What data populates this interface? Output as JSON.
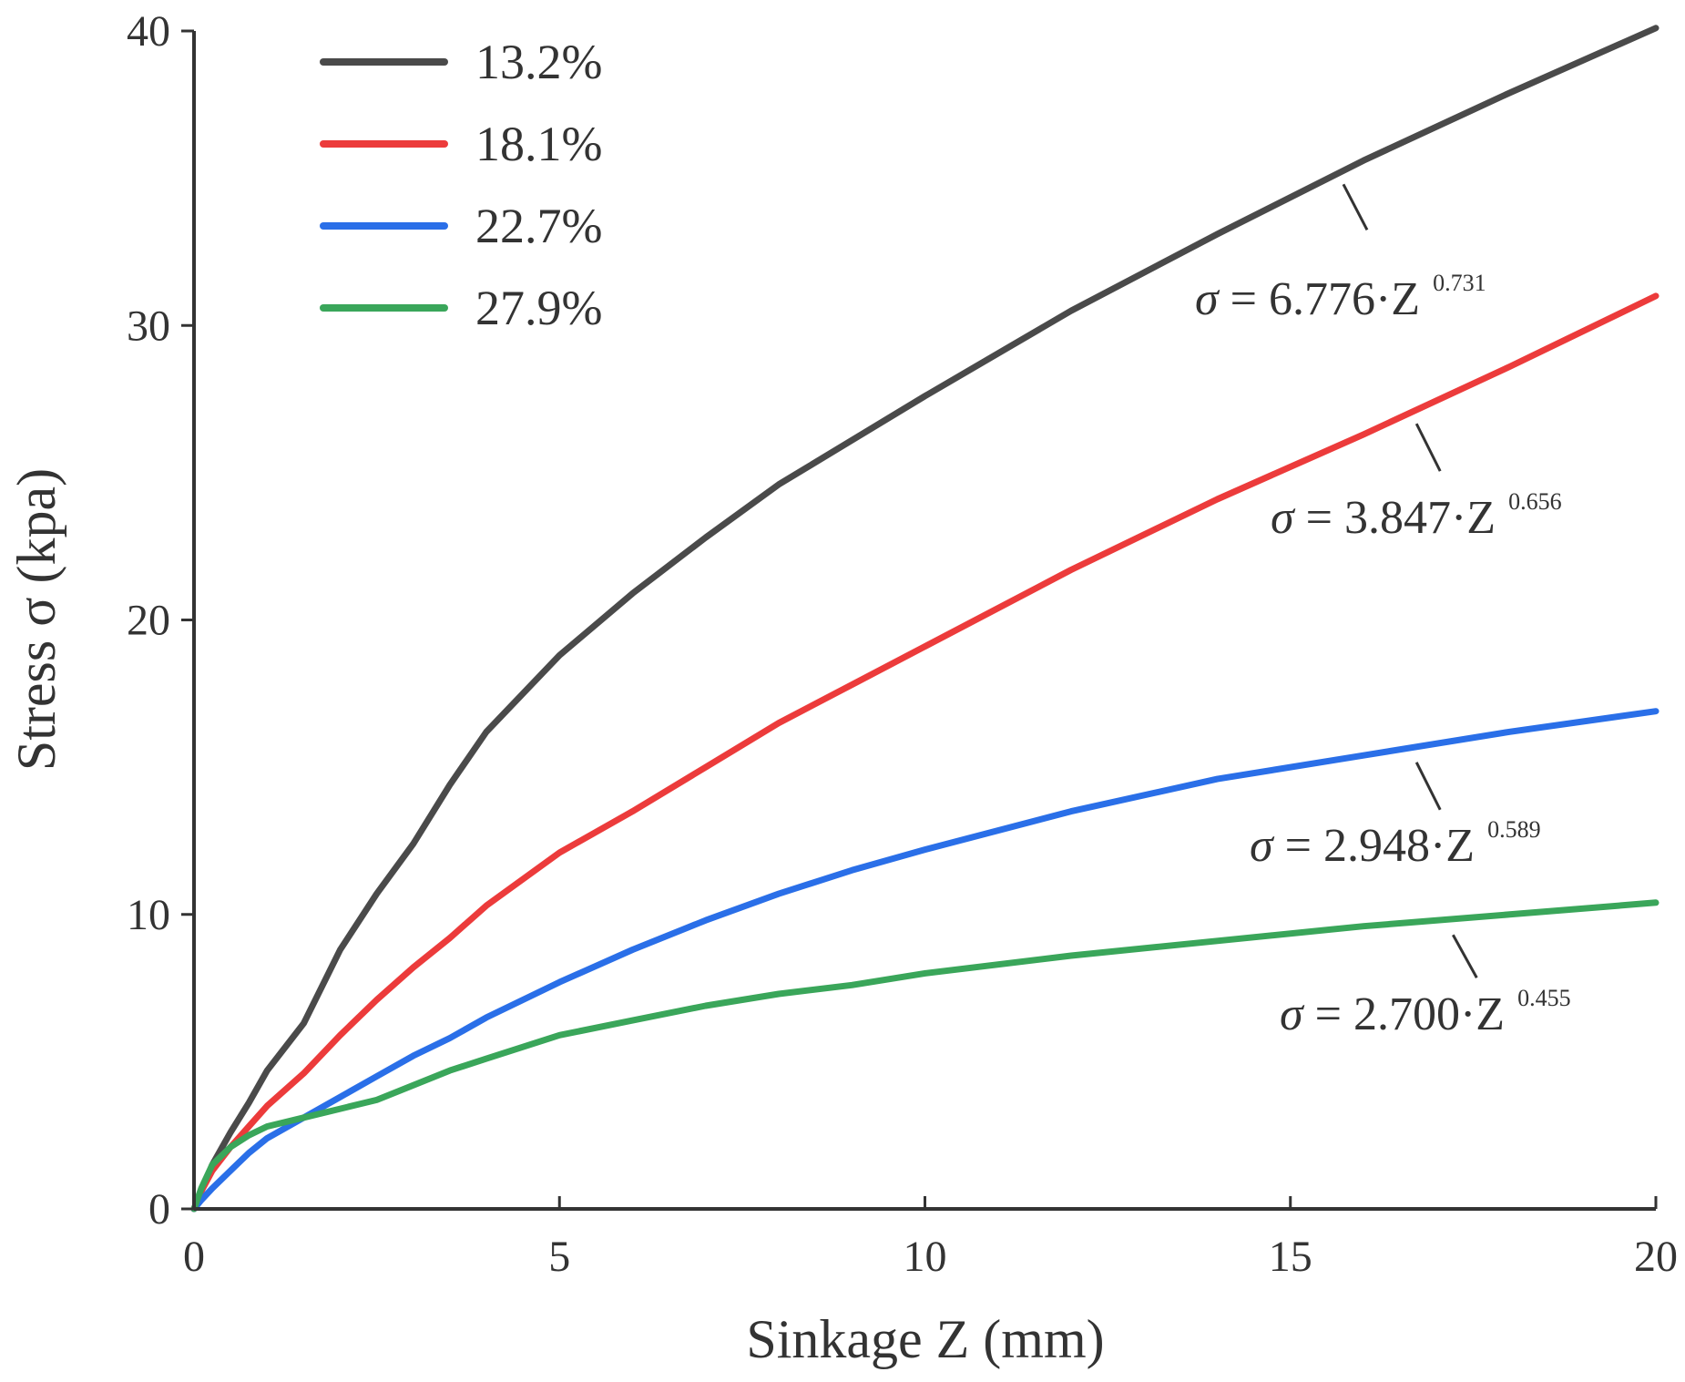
{
  "chart_data": {
    "type": "line",
    "title": "",
    "xlabel": "Sinkage Z (mm)",
    "ylabel": "Stress σ (kpa)",
    "xlim": [
      0,
      20
    ],
    "ylim": [
      0,
      40
    ],
    "x_ticks": [
      0,
      5,
      10,
      15,
      20
    ],
    "y_ticks": [
      0,
      10,
      20,
      30,
      40
    ],
    "grid": false,
    "legend_position": "top-left",
    "series": [
      {
        "name": "13.2%",
        "color": "#4a4a4a",
        "fit": {
          "a": 6.776,
          "b": 0.731
        },
        "x": [
          0,
          0.1,
          0.25,
          0.5,
          0.75,
          1,
          1.5,
          2,
          2.5,
          3,
          3.5,
          4,
          5,
          6,
          7,
          8,
          9,
          10,
          12,
          14,
          16,
          18,
          20
        ],
        "values": [
          0,
          0.6,
          1.5,
          2.6,
          3.6,
          4.7,
          6.3,
          8.8,
          10.7,
          12.4,
          14.4,
          16.2,
          18.8,
          20.9,
          22.8,
          24.6,
          26.1,
          27.6,
          30.5,
          33.1,
          35.6,
          37.9,
          40.1
        ],
        "annotation": {
          "prefix": "σ",
          "text": " = 6.776·Z",
          "exponent": "0.731",
          "x": 15.8
        }
      },
      {
        "name": "18.1%",
        "color": "#ec3b3b",
        "fit": {
          "a": 3.847,
          "b": 0.656
        },
        "x": [
          0,
          0.1,
          0.25,
          0.5,
          0.75,
          1,
          1.5,
          2,
          2.5,
          3,
          3.5,
          4,
          5,
          6,
          7,
          8,
          9,
          10,
          12,
          14,
          16,
          18,
          20
        ],
        "values": [
          0,
          0.6,
          1.3,
          2.1,
          2.8,
          3.5,
          4.6,
          5.9,
          7.1,
          8.2,
          9.2,
          10.3,
          12.1,
          13.5,
          15.0,
          16.5,
          17.8,
          19.1,
          21.7,
          24.1,
          26.3,
          28.6,
          31.0
        ],
        "annotation": {
          "prefix": "σ",
          "text": " = 3.847·Z",
          "exponent": "0.656",
          "x": 16.8
        }
      },
      {
        "name": "22.7%",
        "color": "#2a6fe8",
        "fit": {
          "a": 2.948,
          "b": 0.589
        },
        "x": [
          0,
          0.1,
          0.25,
          0.5,
          0.75,
          1,
          1.5,
          2,
          2.5,
          3,
          3.5,
          4,
          5,
          6,
          7,
          8,
          9,
          10,
          12,
          14,
          16,
          18,
          20
        ],
        "values": [
          0,
          0.3,
          0.7,
          1.3,
          1.9,
          2.4,
          3.1,
          3.8,
          4.5,
          5.2,
          5.8,
          6.5,
          7.7,
          8.8,
          9.8,
          10.7,
          11.5,
          12.2,
          13.5,
          14.6,
          15.4,
          16.2,
          16.9
        ],
        "annotation": {
          "prefix": "σ",
          "text": " = 2.948·Z",
          "exponent": "0.589",
          "x": 16.8
        }
      },
      {
        "name": "27.9%",
        "color": "#3aa65a",
        "fit": {
          "a": 2.7,
          "b": 0.455
        },
        "x": [
          0,
          0.1,
          0.25,
          0.5,
          0.75,
          1,
          1.5,
          2,
          2.5,
          3,
          3.5,
          4,
          5,
          6,
          7,
          8,
          9,
          10,
          12,
          14,
          16,
          18,
          20
        ],
        "values": [
          0,
          0.7,
          1.5,
          2.1,
          2.5,
          2.8,
          3.1,
          3.4,
          3.7,
          4.2,
          4.7,
          5.1,
          5.9,
          6.4,
          6.9,
          7.3,
          7.6,
          8.0,
          8.6,
          9.1,
          9.6,
          10.0,
          10.4
        ],
        "annotation": {
          "prefix": "σ",
          "text": " = 2.700·Z",
          "exponent": "0.455",
          "x": 17.3
        }
      }
    ]
  }
}
